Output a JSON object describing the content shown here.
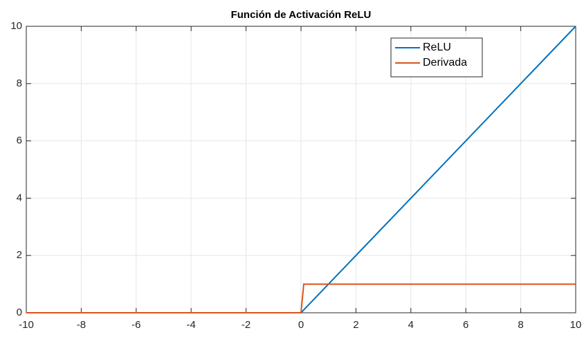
{
  "chart_data": {
    "type": "line",
    "title": "Función de Activación ReLU",
    "x": [
      -10,
      0,
      0.1,
      10
    ],
    "series": [
      {
        "name": "ReLU",
        "color": "#0072bd",
        "values": [
          0,
          0,
          0.1,
          10
        ]
      },
      {
        "name": "Derivada",
        "color": "#d95319",
        "values": [
          0,
          0,
          1,
          1
        ]
      }
    ],
    "xlim": [
      -10,
      10
    ],
    "xticks": [
      -10,
      -8,
      -6,
      -4,
      -2,
      0,
      2,
      4,
      6,
      8,
      10
    ],
    "ylim": [
      0,
      10
    ],
    "yticks": [
      0,
      2,
      4,
      6,
      8,
      10
    ],
    "grid": true,
    "legend": "northeast"
  }
}
